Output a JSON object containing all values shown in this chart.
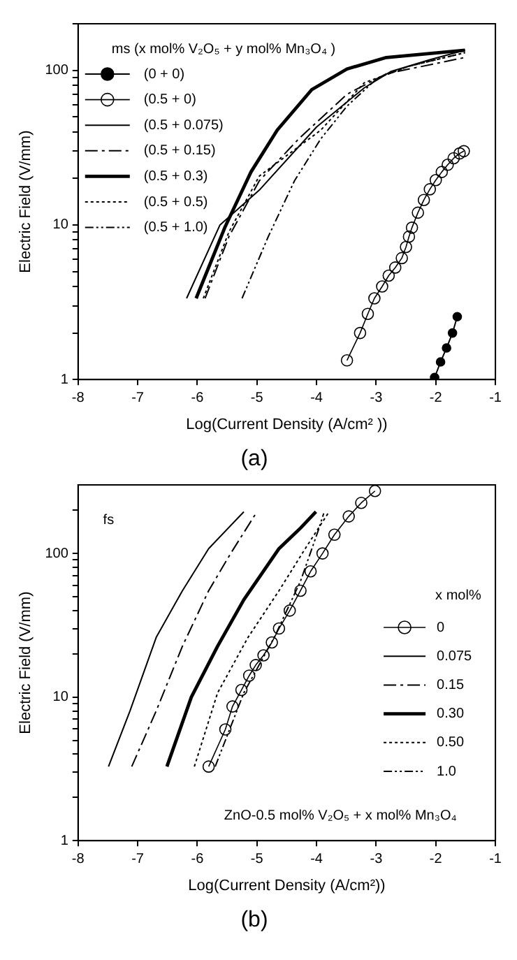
{
  "chart_data": [
    {
      "type": "line",
      "title": "(a)",
      "xlabel": "Log(Current Density (A/cm² ))",
      "ylabel": "Electric Field (V/mm)",
      "legend_title": "ms (x mol% V₂O₅ + y mol% Mn₃O₄ )",
      "legend": "top left",
      "log": "y",
      "grid": false,
      "xlim": [
        -8,
        -1
      ],
      "xticks": [
        -8,
        -7,
        -6,
        -5,
        -4,
        -3,
        -2,
        -1
      ],
      "ylim": [
        1,
        200
      ],
      "yticks": [
        1,
        {
          "value": 2,
          "label": null
        },
        {
          "value": 3,
          "label": null
        },
        {
          "value": 4,
          "label": null
        },
        {
          "value": 5,
          "label": null
        },
        {
          "value": 6,
          "label": null
        },
        {
          "value": 7,
          "label": null
        },
        {
          "value": 8,
          "label": null
        },
        {
          "value": 9,
          "label": null
        },
        10,
        {
          "value": 20,
          "label": null
        },
        {
          "value": 30,
          "label": null
        },
        {
          "value": 40,
          "label": null
        },
        {
          "value": 50,
          "label": null
        },
        {
          "value": 60,
          "label": null
        },
        {
          "value": 70,
          "label": null
        },
        {
          "value": 80,
          "label": null
        },
        {
          "value": 90,
          "label": null
        },
        100,
        {
          "value": 200,
          "label": null
        }
      ],
      "series": [
        {
          "name": "(0 + 0)",
          "color": "#000000",
          "marker": "circle",
          "line_style": "solid",
          "x": [
            -2.02,
            -1.92,
            -1.82,
            -1.72,
            -1.64
          ],
          "values": [
            1.03,
            1.3,
            1.6,
            2.0,
            2.55
          ]
        },
        {
          "name": "(0.5 + 0)",
          "color": "#000000",
          "marker": "circle",
          "line_style": "solid",
          "x": [
            -3.49,
            -3.27,
            -3.14,
            -3.03,
            -2.9,
            -2.79,
            -2.68,
            -2.57,
            -2.5,
            -2.45,
            -2.4,
            -2.3,
            -2.2,
            -2.1,
            -2.0,
            -1.9,
            -1.8,
            -1.7,
            -1.6,
            -1.53
          ],
          "values": [
            1.33,
            2.0,
            2.66,
            3.35,
            4.0,
            4.7,
            5.3,
            6.1,
            7.2,
            8.4,
            9.6,
            12,
            14.5,
            17,
            19.5,
            22,
            24.5,
            27,
            29,
            30
          ]
        },
        {
          "name": "(0.5 + 0.075)",
          "color": "#000000",
          "line_style": "solid",
          "x": [
            -6.18,
            -5.62,
            -4.96,
            -4.0,
            -3.2,
            -2.76,
            -2.1,
            -1.51
          ],
          "values": [
            3.35,
            10,
            16.8,
            43,
            77,
            98,
            117,
            135
          ]
        },
        {
          "name": "(0.5 + 0.15)",
          "color": "#000000",
          "line_style": "dashed",
          "x": [
            -5.87,
            -5.47,
            -4.96,
            -4.3,
            -3.49,
            -2.83,
            -1.51
          ],
          "values": [
            3.35,
            8.4,
            19.3,
            36,
            70,
            95,
            121
          ]
        },
        {
          "name": "(0.5 + 0.3)",
          "color": "#000000",
          "line_style": "solid",
          "x": [
            -6.02,
            -5.54,
            -5.1,
            -4.66,
            -4.08,
            -3.49,
            -2.83,
            -1.51
          ],
          "values": [
            3.35,
            9.6,
            22,
            41,
            75,
            102,
            121,
            135
          ]
        },
        {
          "name": "(0.5 + 0.5)",
          "color": "#000000",
          "line_style": "dotted",
          "x": [
            -5.9,
            -5.47,
            -4.96,
            -3.93,
            -3.2,
            -2.46,
            -1.51
          ],
          "values": [
            3.35,
            9.0,
            20.7,
            41,
            83,
            106,
            130
          ]
        },
        {
          "name": "(0.5 + 1.0)",
          "color": "#000000",
          "line_style": "dashed",
          "x": [
            -5.25,
            -4.81,
            -4.37,
            -3.93,
            -3.49,
            -2.98,
            -2.46,
            -1.51
          ],
          "values": [
            3.35,
            8.4,
            19.3,
            36,
            58.6,
            89,
            106,
            130
          ]
        }
      ]
    },
    {
      "type": "line",
      "title": "(b)",
      "xlabel": "Log(Current Density (A/cm²))",
      "ylabel": "Electric Field (V/mm)",
      "legend_title": "x mol%",
      "legend": "right",
      "log": "y",
      "grid": false,
      "annotations": [
        "fs",
        "ZnO-0.5 mol% V₂O₅ + x mol% Mn₃O₄"
      ],
      "xlim": [
        -8,
        -1
      ],
      "xticks": [
        -8,
        -7,
        -6,
        -5,
        -4,
        -3,
        -2,
        -1
      ],
      "ylim": [
        1,
        300
      ],
      "yticks": [
        1,
        {
          "value": 2,
          "label": null
        },
        {
          "value": 3,
          "label": null
        },
        {
          "value": 4,
          "label": null
        },
        {
          "value": 5,
          "label": null
        },
        {
          "value": 6,
          "label": null
        },
        {
          "value": 7,
          "label": null
        },
        {
          "value": 8,
          "label": null
        },
        {
          "value": 9,
          "label": null
        },
        10,
        {
          "value": 20,
          "label": null
        },
        {
          "value": 30,
          "label": null
        },
        {
          "value": 40,
          "label": null
        },
        {
          "value": 50,
          "label": null
        },
        {
          "value": 60,
          "label": null
        },
        {
          "value": 70,
          "label": null
        },
        {
          "value": 80,
          "label": null
        },
        {
          "value": 90,
          "label": null
        },
        100,
        {
          "value": 200,
          "label": null
        }
      ],
      "series": [
        {
          "name": "0",
          "color": "#000000",
          "marker": "circle",
          "line_style": "solid",
          "x": [
            -5.81,
            -5.53,
            -5.41,
            -5.26,
            -5.13,
            -5.02,
            -4.89,
            -4.75,
            -4.63,
            -4.45,
            -4.27,
            -4.1,
            -3.9,
            -3.7,
            -3.46,
            -3.25,
            -3.02
          ],
          "values": [
            3.28,
            5.95,
            8.6,
            11.2,
            14.1,
            16.7,
            19.5,
            24,
            30,
            40,
            55,
            75,
            100,
            135,
            181,
            225,
            272
          ]
        },
        {
          "name": "0.075",
          "color": "#000000",
          "line_style": "solid",
          "x": [
            -7.49,
            -7.13,
            -6.69,
            -6.25,
            -5.81,
            -5.22
          ],
          "values": [
            3.28,
            8.0,
            26,
            55,
            108,
            195
          ]
        },
        {
          "name": "0.15",
          "color": "#000000",
          "line_style": "dashed",
          "x": [
            -7.1,
            -6.69,
            -6.25,
            -5.81,
            -5.44,
            -5.0
          ],
          "values": [
            3.28,
            8.0,
            22.6,
            55,
            100,
            195
          ]
        },
        {
          "name": "0.30",
          "color": "#000000",
          "line_style": "solid",
          "x": [
            -6.51,
            -6.1,
            -5.66,
            -5.22,
            -4.63,
            -4.27,
            -4.01
          ],
          "values": [
            3.28,
            10,
            22.6,
            47.6,
            108,
            150,
            195
          ]
        },
        {
          "name": "0.50",
          "color": "#000000",
          "line_style": "dotted",
          "x": [
            -6.05,
            -5.66,
            -5.15,
            -4.63,
            -4.19,
            -3.79
          ],
          "values": [
            3.28,
            10.7,
            26,
            55,
            108,
            195
          ]
        },
        {
          "name": "1.0",
          "color": "#000000",
          "line_style": "dashed",
          "x": [
            -5.7,
            -5.22,
            -4.71,
            -4.27,
            -3.97,
            -3.88
          ],
          "values": [
            3.28,
            10.7,
            26,
            64,
            145,
            190
          ]
        }
      ]
    }
  ]
}
